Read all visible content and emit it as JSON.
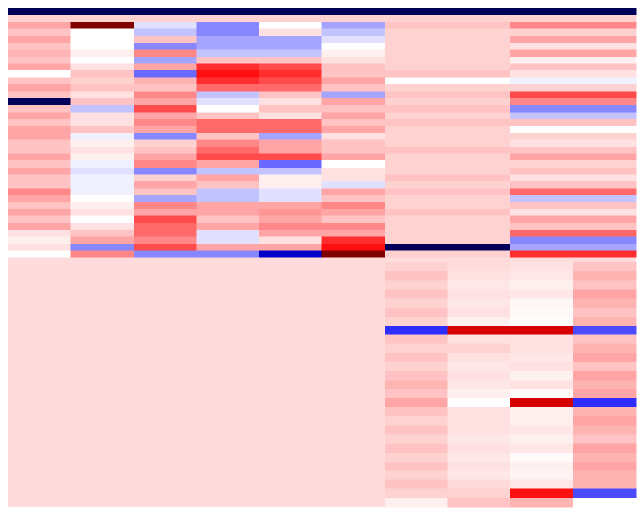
{
  "chart_data": {
    "type": "heatmap",
    "title": "",
    "xlabel": "",
    "ylabel": "",
    "colormap": "bwr",
    "colors": {
      "low": "#00005a",
      "mid": "#ffffff",
      "high": "#800000"
    },
    "value_range": [
      -1,
      1
    ],
    "background_value": 0.12,
    "panels": [
      {
        "name": "top-left",
        "columns": 6,
        "values": [
          [
            -1.0,
            -1.0,
            -1.0,
            -1.0,
            -1.0,
            -1.0
          ],
          [
            0.15,
            0.15,
            0.15,
            0.15,
            0.15,
            0.15
          ],
          [
            0.3,
            1.0,
            -0.1,
            -0.4,
            0.0,
            -0.3
          ],
          [
            0.2,
            0.0,
            -0.2,
            -0.4,
            0.1,
            -0.2
          ],
          [
            0.3,
            0.0,
            0.2,
            -0.3,
            -0.3,
            -0.1
          ],
          [
            0.2,
            0.0,
            -0.4,
            -0.3,
            -0.3,
            0.0
          ],
          [
            0.25,
            0.05,
            0.4,
            -0.2,
            -0.2,
            0.05
          ],
          [
            0.2,
            0.0,
            -0.3,
            0.2,
            0.2,
            0.1
          ],
          [
            0.3,
            0.1,
            0.3,
            0.7,
            0.6,
            0.2
          ],
          [
            0.0,
            0.2,
            -0.5,
            0.8,
            0.7,
            0.2
          ],
          [
            0.2,
            0.15,
            0.25,
            0.7,
            0.6,
            0.3
          ],
          [
            0.3,
            0.2,
            0.2,
            0.5,
            0.5,
            0.2
          ],
          [
            0.2,
            0.1,
            0.4,
            -0.2,
            0.2,
            -0.3
          ],
          [
            -1.0,
            0.2,
            0.3,
            -0.1,
            0.1,
            0.3
          ],
          [
            0.2,
            -0.2,
            0.6,
            0.0,
            0.2,
            0.2
          ],
          [
            0.3,
            0.1,
            0.3,
            0.2,
            0.1,
            0.3
          ],
          [
            0.2,
            0.1,
            0.4,
            0.5,
            0.5,
            0.2
          ],
          [
            0.3,
            0.2,
            0.3,
            0.5,
            0.5,
            0.3
          ],
          [
            0.3,
            -0.05,
            -0.4,
            0.2,
            -0.3,
            0.1
          ],
          [
            0.2,
            0.05,
            0.15,
            0.4,
            0.3,
            0.2
          ],
          [
            0.2,
            0.1,
            0.2,
            0.5,
            0.3,
            0.2
          ],
          [
            0.3,
            0.05,
            0.3,
            0.6,
            0.6,
            0.3
          ],
          [
            0.2,
            -0.05,
            0.4,
            0.3,
            -0.5,
            0.0
          ],
          [
            0.3,
            -0.1,
            -0.4,
            -0.2,
            -0.2,
            0.1
          ],
          [
            0.2,
            -0.05,
            0.15,
            0.3,
            0.05,
            0.1
          ],
          [
            0.2,
            -0.05,
            0.3,
            0.2,
            0.05,
            -0.1
          ],
          [
            0.4,
            -0.05,
            0.2,
            -0.2,
            -0.1,
            0.3
          ],
          [
            0.3,
            0.0,
            -0.3,
            -0.2,
            -0.1,
            0.2
          ],
          [
            0.2,
            0.05,
            0.4,
            0.3,
            0.3,
            0.4
          ],
          [
            0.3,
            0.1,
            0.3,
            0.3,
            0.35,
            0.3
          ],
          [
            0.2,
            0.0,
            0.6,
            0.2,
            0.3,
            0.2
          ],
          [
            0.3,
            0.1,
            0.5,
            0.3,
            0.4,
            0.4
          ],
          [
            0.1,
            0.2,
            0.5,
            -0.1,
            0.3,
            0.3
          ],
          [
            0.05,
            0.3,
            0.4,
            -0.1,
            0.1,
            0.7
          ],
          [
            0.1,
            -0.4,
            0.6,
            0.3,
            0.3,
            0.8
          ],
          [
            0.0,
            0.4,
            -0.4,
            -0.4,
            -0.9,
            1.0
          ]
        ]
      },
      {
        "name": "top-right",
        "columns": 4,
        "values": [
          [
            -1.0,
            -1.0,
            -1.0,
            -1.0
          ],
          [
            0.15,
            0.15,
            0.15,
            0.15
          ],
          [
            0.2,
            0.2,
            0.4,
            0.4
          ],
          [
            0.15,
            0.15,
            0.15,
            0.15
          ],
          [
            0.15,
            0.15,
            0.3,
            0.3
          ],
          [
            0.15,
            0.15,
            0.1,
            0.1
          ],
          [
            0.15,
            0.15,
            0.3,
            0.3
          ],
          [
            0.15,
            0.15,
            0.05,
            0.05
          ],
          [
            0.15,
            0.15,
            0.2,
            0.2
          ],
          [
            0.2,
            0.2,
            0.1,
            0.1
          ],
          [
            0.0,
            0.0,
            -0.05,
            -0.05
          ],
          [
            0.15,
            0.15,
            0.15,
            0.15
          ],
          [
            0.2,
            0.2,
            0.6,
            0.6
          ],
          [
            0.15,
            0.15,
            0.4,
            0.4
          ],
          [
            0.2,
            0.2,
            -0.4,
            -0.4
          ],
          [
            0.15,
            0.15,
            -0.2,
            -0.2
          ],
          [
            0.2,
            0.2,
            0.2,
            0.2
          ],
          [
            0.15,
            0.15,
            0.0,
            0.0
          ],
          [
            0.15,
            0.15,
            0.15,
            0.15
          ],
          [
            0.15,
            0.15,
            0.1,
            0.1
          ],
          [
            0.2,
            0.2,
            0.2,
            0.2
          ],
          [
            0.15,
            0.15,
            0.3,
            0.3
          ],
          [
            0.15,
            0.15,
            0.15,
            0.15
          ],
          [
            0.15,
            0.15,
            0.2,
            0.2
          ],
          [
            0.2,
            0.2,
            0.1,
            0.1
          ],
          [
            0.15,
            0.15,
            0.2,
            0.2
          ],
          [
            0.2,
            0.2,
            0.5,
            0.5
          ],
          [
            0.15,
            0.15,
            -0.2,
            -0.2
          ],
          [
            0.15,
            0.15,
            0.2,
            0.2
          ],
          [
            0.2,
            0.2,
            0.1,
            0.1
          ],
          [
            0.15,
            0.15,
            0.3,
            0.3
          ],
          [
            0.15,
            0.15,
            0.2,
            0.2
          ],
          [
            0.15,
            0.15,
            0.5,
            0.5
          ],
          [
            0.15,
            0.15,
            -0.4,
            -0.4
          ],
          [
            -1.0,
            -1.0,
            -0.3,
            -0.3
          ],
          [
            0.15,
            0.15,
            0.7,
            0.7
          ]
        ]
      },
      {
        "name": "bottom-right",
        "columns": 4,
        "values": [
          [
            0.15,
            0.12,
            0.1,
            0.2
          ],
          [
            0.2,
            0.1,
            0.08,
            0.25
          ],
          [
            0.15,
            0.08,
            0.05,
            0.2
          ],
          [
            0.2,
            0.1,
            0.08,
            0.3
          ],
          [
            0.15,
            0.08,
            0.03,
            0.25
          ],
          [
            0.2,
            0.1,
            0.02,
            0.2
          ],
          [
            0.15,
            0.05,
            0.01,
            0.25
          ],
          [
            -0.7,
            0.9,
            0.9,
            -0.6
          ],
          [
            0.2,
            0.1,
            0.1,
            0.2
          ],
          [
            0.15,
            0.15,
            0.1,
            0.25
          ],
          [
            0.2,
            0.1,
            0.08,
            0.3
          ],
          [
            0.15,
            0.08,
            0.1,
            0.2
          ],
          [
            0.2,
            0.1,
            0.05,
            0.3
          ],
          [
            0.25,
            0.08,
            0.1,
            0.25
          ],
          [
            0.2,
            0.05,
            0.02,
            0.3
          ],
          [
            0.3,
            0.0,
            0.9,
            -0.7
          ],
          [
            0.2,
            0.1,
            0.05,
            0.25
          ],
          [
            0.15,
            0.1,
            0.05,
            0.3
          ],
          [
            0.2,
            0.1,
            0.08,
            0.25
          ],
          [
            0.15,
            0.08,
            0.05,
            0.2
          ],
          [
            0.2,
            0.1,
            0.08,
            0.3
          ],
          [
            0.15,
            0.08,
            0.02,
            0.25
          ],
          [
            0.2,
            0.1,
            0.05,
            0.3
          ],
          [
            0.15,
            0.08,
            0.04,
            0.25
          ],
          [
            0.2,
            0.12,
            0.08,
            0.25
          ],
          [
            0.15,
            0.15,
            0.8,
            -0.6
          ],
          [
            0.05,
            0.2,
            0.25,
            0.0
          ]
        ]
      }
    ]
  }
}
